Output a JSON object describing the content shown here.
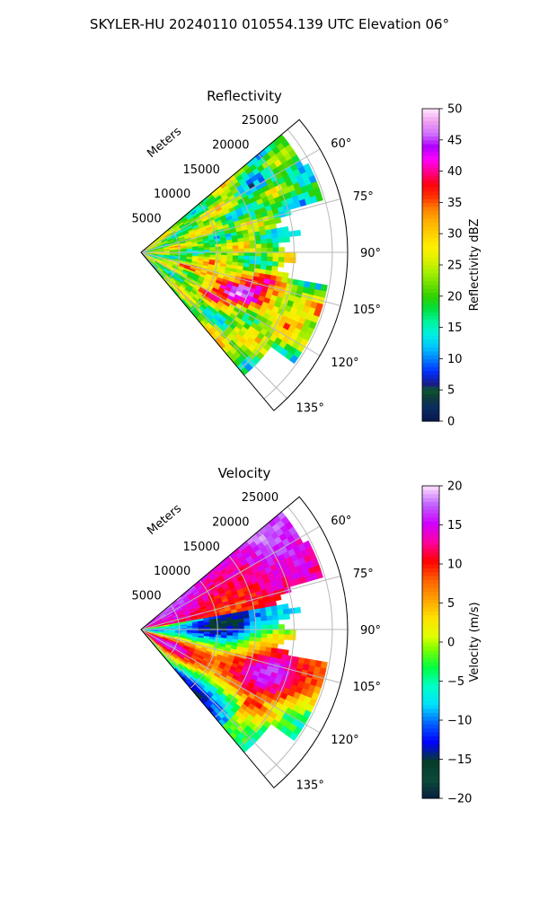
{
  "figure_title": "SKYLER-HU  20240110  010554.139 UTC Elevation 06°",
  "chart_data": [
    {
      "type": "heatmap",
      "projection": "polar-sector",
      "title": "Reflectivity",
      "range_label": "Meters",
      "range_ticks": [
        "5000",
        "10000",
        "15000",
        "20000",
        "25000"
      ],
      "range_tick_values": [
        5000,
        10000,
        15000,
        20000,
        25000
      ],
      "angle_ticks": [
        "60°",
        "75°",
        "90°",
        "105°",
        "120°",
        "135°"
      ],
      "angle_tick_values": [
        60,
        75,
        90,
        105,
        120,
        135
      ],
      "angle_range": [
        50,
        140
      ],
      "range_max": 27000,
      "grid": true,
      "colorbar": {
        "label": "Reflectivity dBZ",
        "range": [
          0,
          50
        ],
        "ticks": [
          "0",
          "5",
          "10",
          "15",
          "20",
          "25",
          "30",
          "35",
          "40",
          "45",
          "50"
        ],
        "tick_values": [
          0,
          5,
          10,
          15,
          20,
          25,
          30,
          35,
          40,
          45,
          50
        ],
        "colormap": "pyart_NWSRef"
      }
    },
    {
      "type": "heatmap",
      "projection": "polar-sector",
      "title": "Velocity",
      "range_label": "Meters",
      "range_ticks": [
        "5000",
        "10000",
        "15000",
        "20000",
        "25000"
      ],
      "range_tick_values": [
        5000,
        10000,
        15000,
        20000,
        25000
      ],
      "angle_ticks": [
        "60°",
        "75°",
        "90°",
        "105°",
        "120°",
        "135°"
      ],
      "angle_tick_values": [
        60,
        75,
        90,
        105,
        120,
        135
      ],
      "angle_range": [
        50,
        140
      ],
      "range_max": 27000,
      "grid": true,
      "colorbar": {
        "label": "Velocity (m/s)",
        "range": [
          -20,
          20
        ],
        "ticks": [
          "−20",
          "−15",
          "−10",
          "−5",
          "0",
          "5",
          "10",
          "15",
          "20"
        ],
        "tick_values": [
          -20,
          -15,
          -10,
          -5,
          0,
          5,
          10,
          15,
          20
        ],
        "colormap": "pyart_NWSVel"
      }
    }
  ]
}
